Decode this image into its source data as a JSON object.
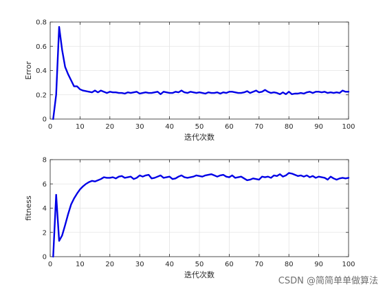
{
  "watermark": "CSDN @简简单单做算法",
  "colors": {
    "series": "#0000e6"
  },
  "chart_data": [
    {
      "type": "line",
      "xlabel": "迭代次数",
      "ylabel": "Error",
      "xlim": [
        0,
        100
      ],
      "ylim": [
        0,
        0.8
      ],
      "xticks": [
        0,
        10,
        20,
        30,
        40,
        50,
        60,
        70,
        80,
        90,
        100
      ],
      "yticks": [
        0,
        0.2,
        0.4,
        0.6,
        0.8
      ],
      "ytick_labels": [
        "0",
        "0.2",
        "0.4",
        "0.6",
        "0.8"
      ],
      "grid": true,
      "series": [
        {
          "color": "#0000e6",
          "x": [
            1,
            2,
            3,
            4,
            5,
            6,
            7,
            8,
            9,
            10,
            11,
            12,
            13,
            14,
            15,
            16,
            17,
            18,
            19,
            20,
            21,
            22,
            23,
            24,
            25,
            26,
            27,
            28,
            29,
            30,
            31,
            32,
            33,
            34,
            35,
            36,
            37,
            38,
            39,
            40,
            41,
            42,
            43,
            44,
            45,
            46,
            47,
            48,
            49,
            50,
            51,
            52,
            53,
            54,
            55,
            56,
            57,
            58,
            59,
            60,
            61,
            62,
            63,
            64,
            65,
            66,
            67,
            68,
            69,
            70,
            71,
            72,
            73,
            74,
            75,
            76,
            77,
            78,
            79,
            80,
            81,
            82,
            83,
            84,
            85,
            86,
            87,
            88,
            89,
            90,
            91,
            92,
            93,
            94,
            95,
            96,
            97,
            98,
            99,
            100
          ],
          "y": [
            0.0,
            0.2,
            0.76,
            0.57,
            0.43,
            0.37,
            0.32,
            0.27,
            0.27,
            0.245,
            0.235,
            0.23,
            0.225,
            0.22,
            0.235,
            0.22,
            0.235,
            0.225,
            0.215,
            0.225,
            0.22,
            0.22,
            0.215,
            0.215,
            0.21,
            0.22,
            0.215,
            0.22,
            0.225,
            0.21,
            0.215,
            0.22,
            0.215,
            0.215,
            0.22,
            0.225,
            0.205,
            0.225,
            0.22,
            0.215,
            0.215,
            0.225,
            0.22,
            0.235,
            0.22,
            0.215,
            0.225,
            0.22,
            0.215,
            0.22,
            0.215,
            0.21,
            0.22,
            0.215,
            0.215,
            0.22,
            0.21,
            0.22,
            0.215,
            0.225,
            0.225,
            0.22,
            0.215,
            0.215,
            0.22,
            0.23,
            0.215,
            0.225,
            0.235,
            0.22,
            0.225,
            0.24,
            0.225,
            0.215,
            0.22,
            0.215,
            0.205,
            0.22,
            0.205,
            0.225,
            0.205,
            0.21,
            0.21,
            0.215,
            0.21,
            0.22,
            0.225,
            0.215,
            0.225,
            0.225,
            0.22,
            0.225,
            0.215,
            0.22,
            0.215,
            0.22,
            0.215,
            0.235,
            0.225,
            0.225
          ]
        }
      ]
    },
    {
      "type": "line",
      "xlabel": "迭代次数",
      "ylabel": "fitness",
      "xlim": [
        0,
        100
      ],
      "ylim": [
        0,
        8
      ],
      "xticks": [
        0,
        10,
        20,
        30,
        40,
        50,
        60,
        70,
        80,
        90,
        100
      ],
      "yticks": [
        0,
        2,
        4,
        6,
        8
      ],
      "ytick_labels": [
        "0",
        "2",
        "4",
        "6",
        "8"
      ],
      "grid": true,
      "series": [
        {
          "color": "#0000e6",
          "x": [
            1,
            2,
            3,
            4,
            5,
            6,
            7,
            8,
            9,
            10,
            11,
            12,
            13,
            14,
            15,
            16,
            17,
            18,
            19,
            20,
            21,
            22,
            23,
            24,
            25,
            26,
            27,
            28,
            29,
            30,
            31,
            32,
            33,
            34,
            35,
            36,
            37,
            38,
            39,
            40,
            41,
            42,
            43,
            44,
            45,
            46,
            47,
            48,
            49,
            50,
            51,
            52,
            53,
            54,
            55,
            56,
            57,
            58,
            59,
            60,
            61,
            62,
            63,
            64,
            65,
            66,
            67,
            68,
            69,
            70,
            71,
            72,
            73,
            74,
            75,
            76,
            77,
            78,
            79,
            80,
            81,
            82,
            83,
            84,
            85,
            86,
            87,
            88,
            89,
            90,
            91,
            92,
            93,
            94,
            95,
            96,
            97,
            98,
            99,
            100
          ],
          "y": [
            0.0,
            5.1,
            1.3,
            1.75,
            2.6,
            3.5,
            4.3,
            4.8,
            5.2,
            5.55,
            5.8,
            6.0,
            6.15,
            6.25,
            6.2,
            6.3,
            6.4,
            6.55,
            6.5,
            6.5,
            6.55,
            6.45,
            6.6,
            6.65,
            6.5,
            6.55,
            6.6,
            6.4,
            6.5,
            6.7,
            6.6,
            6.7,
            6.75,
            6.45,
            6.5,
            6.6,
            6.7,
            6.5,
            6.55,
            6.6,
            6.4,
            6.45,
            6.6,
            6.7,
            6.55,
            6.5,
            6.55,
            6.6,
            6.7,
            6.65,
            6.6,
            6.7,
            6.75,
            6.8,
            6.7,
            6.6,
            6.7,
            6.75,
            6.6,
            6.55,
            6.7,
            6.5,
            6.55,
            6.6,
            6.45,
            6.3,
            6.35,
            6.45,
            6.4,
            6.35,
            6.6,
            6.55,
            6.6,
            6.5,
            6.7,
            6.65,
            6.8,
            6.6,
            6.7,
            6.9,
            6.85,
            6.75,
            6.65,
            6.7,
            6.6,
            6.7,
            6.55,
            6.65,
            6.5,
            6.6,
            6.55,
            6.5,
            6.35,
            6.6,
            6.45,
            6.35,
            6.45,
            6.5,
            6.45,
            6.5
          ]
        }
      ]
    }
  ]
}
